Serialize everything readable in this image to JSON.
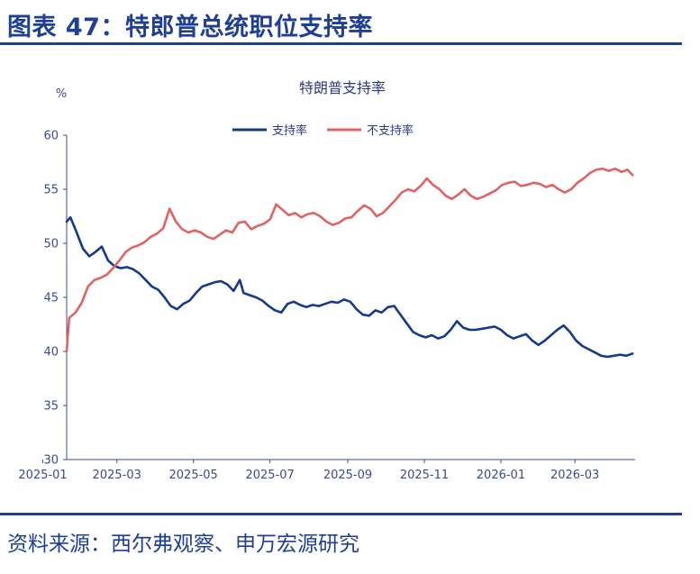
{
  "figure": {
    "title": "图表 47：特郎普总统职位支持率",
    "source": "资料来源：西尔弗观察、申万宏源研究",
    "accent_color": "#1f3f93"
  },
  "chart_data": {
    "type": "line",
    "title": "特朗普支持率",
    "ylabel": "%",
    "xlabel": "",
    "ylim": [
      30,
      60
    ],
    "yticks": [
      "30",
      "35",
      "40",
      "45",
      "50",
      "55",
      "60"
    ],
    "xlim": [
      "2025-01-20",
      "2026-04-18"
    ],
    "xticks": [
      "2025-01",
      "2025-03",
      "2025-05",
      "2025-07",
      "2025-09",
      "2025-11",
      "2026-01",
      "2026-03"
    ],
    "grid": false,
    "legend_position": "top",
    "series": [
      {
        "name": "支持率",
        "color": "#143a8c",
        "points": [
          [
            "2025-01-20",
            52.0
          ],
          [
            "2025-01-23",
            52.4
          ],
          [
            "2025-01-28",
            51.0
          ],
          [
            "2025-02-02",
            49.5
          ],
          [
            "2025-02-07",
            48.8
          ],
          [
            "2025-02-12",
            49.2
          ],
          [
            "2025-02-17",
            49.7
          ],
          [
            "2025-02-22",
            48.4
          ],
          [
            "2025-02-27",
            47.9
          ],
          [
            "2025-03-04",
            47.7
          ],
          [
            "2025-03-09",
            47.8
          ],
          [
            "2025-03-14",
            47.6
          ],
          [
            "2025-03-19",
            47.2
          ],
          [
            "2025-03-24",
            46.6
          ],
          [
            "2025-03-29",
            46.0
          ],
          [
            "2025-04-03",
            45.7
          ],
          [
            "2025-04-08",
            45.0
          ],
          [
            "2025-04-13",
            44.2
          ],
          [
            "2025-04-18",
            43.9
          ],
          [
            "2025-04-23",
            44.4
          ],
          [
            "2025-04-28",
            44.7
          ],
          [
            "2025-05-03",
            45.4
          ],
          [
            "2025-05-08",
            46.0
          ],
          [
            "2025-05-13",
            46.2
          ],
          [
            "2025-05-18",
            46.4
          ],
          [
            "2025-05-23",
            46.5
          ],
          [
            "2025-05-28",
            46.2
          ],
          [
            "2025-06-02",
            45.6
          ],
          [
            "2025-06-07",
            46.6
          ],
          [
            "2025-06-10",
            45.4
          ],
          [
            "2025-06-15",
            45.2
          ],
          [
            "2025-06-20",
            45.0
          ],
          [
            "2025-06-25",
            44.7
          ],
          [
            "2025-06-30",
            44.2
          ],
          [
            "2025-07-05",
            43.8
          ],
          [
            "2025-07-10",
            43.6
          ],
          [
            "2025-07-15",
            44.4
          ],
          [
            "2025-07-20",
            44.6
          ],
          [
            "2025-07-25",
            44.3
          ],
          [
            "2025-07-30",
            44.1
          ],
          [
            "2025-08-04",
            44.3
          ],
          [
            "2025-08-09",
            44.2
          ],
          [
            "2025-08-14",
            44.4
          ],
          [
            "2025-08-19",
            44.6
          ],
          [
            "2025-08-24",
            44.5
          ],
          [
            "2025-08-29",
            44.8
          ],
          [
            "2025-09-03",
            44.6
          ],
          [
            "2025-09-08",
            43.9
          ],
          [
            "2025-09-13",
            43.4
          ],
          [
            "2025-09-18",
            43.3
          ],
          [
            "2025-09-23",
            43.8
          ],
          [
            "2025-09-28",
            43.6
          ],
          [
            "2025-10-03",
            44.1
          ],
          [
            "2025-10-08",
            44.2
          ],
          [
            "2025-10-13",
            43.4
          ],
          [
            "2025-10-18",
            42.6
          ],
          [
            "2025-10-23",
            41.8
          ],
          [
            "2025-10-28",
            41.5
          ],
          [
            "2025-11-02",
            41.3
          ],
          [
            "2025-11-07",
            41.5
          ],
          [
            "2025-11-12",
            41.2
          ],
          [
            "2025-11-17",
            41.4
          ],
          [
            "2025-11-22",
            42.0
          ],
          [
            "2025-11-27",
            42.8
          ],
          [
            "2025-12-02",
            42.2
          ],
          [
            "2025-12-07",
            42.0
          ],
          [
            "2025-12-12",
            42.0
          ],
          [
            "2025-12-17",
            42.1
          ],
          [
            "2025-12-22",
            42.2
          ],
          [
            "2025-12-27",
            42.3
          ],
          [
            "2026-01-01",
            42.0
          ],
          [
            "2026-01-06",
            41.5
          ],
          [
            "2026-01-11",
            41.2
          ],
          [
            "2026-01-16",
            41.4
          ],
          [
            "2026-01-21",
            41.6
          ],
          [
            "2026-01-26",
            41.0
          ],
          [
            "2026-01-31",
            40.6
          ],
          [
            "2026-02-05",
            41.0
          ],
          [
            "2026-02-10",
            41.5
          ],
          [
            "2026-02-15",
            42.0
          ],
          [
            "2026-02-20",
            42.4
          ],
          [
            "2026-02-25",
            41.8
          ],
          [
            "2026-03-02",
            41.0
          ],
          [
            "2026-03-07",
            40.5
          ],
          [
            "2026-03-12",
            40.2
          ],
          [
            "2026-03-17",
            39.9
          ],
          [
            "2026-03-22",
            39.6
          ],
          [
            "2026-03-27",
            39.5
          ],
          [
            "2026-04-01",
            39.6
          ],
          [
            "2026-04-06",
            39.7
          ],
          [
            "2026-04-11",
            39.6
          ],
          [
            "2026-04-16",
            39.8
          ]
        ]
      },
      {
        "name": "不支持率",
        "color": "#de6464",
        "points": [
          [
            "2025-01-20",
            40.0
          ],
          [
            "2025-01-22",
            43.1
          ],
          [
            "2025-01-27",
            43.6
          ],
          [
            "2025-02-01",
            44.5
          ],
          [
            "2025-02-06",
            46.0
          ],
          [
            "2025-02-11",
            46.6
          ],
          [
            "2025-02-16",
            46.8
          ],
          [
            "2025-02-21",
            47.1
          ],
          [
            "2025-02-26",
            47.7
          ],
          [
            "2025-03-03",
            48.4
          ],
          [
            "2025-03-08",
            49.2
          ],
          [
            "2025-03-13",
            49.6
          ],
          [
            "2025-03-18",
            49.8
          ],
          [
            "2025-03-23",
            50.1
          ],
          [
            "2025-03-28",
            50.6
          ],
          [
            "2025-04-02",
            50.9
          ],
          [
            "2025-04-07",
            51.4
          ],
          [
            "2025-04-12",
            53.2
          ],
          [
            "2025-04-17",
            52.0
          ],
          [
            "2025-04-22",
            51.3
          ],
          [
            "2025-04-27",
            51.0
          ],
          [
            "2025-05-02",
            51.2
          ],
          [
            "2025-05-07",
            51.0
          ],
          [
            "2025-05-12",
            50.6
          ],
          [
            "2025-05-17",
            50.4
          ],
          [
            "2025-05-22",
            50.8
          ],
          [
            "2025-05-27",
            51.2
          ],
          [
            "2025-06-01",
            51.0
          ],
          [
            "2025-06-06",
            51.9
          ],
          [
            "2025-06-11",
            52.0
          ],
          [
            "2025-06-16",
            51.3
          ],
          [
            "2025-06-21",
            51.6
          ],
          [
            "2025-06-26",
            51.8
          ],
          [
            "2025-07-01",
            52.2
          ],
          [
            "2025-07-06",
            53.6
          ],
          [
            "2025-07-11",
            53.1
          ],
          [
            "2025-07-16",
            52.6
          ],
          [
            "2025-07-21",
            52.8
          ],
          [
            "2025-07-26",
            52.4
          ],
          [
            "2025-07-31",
            52.7
          ],
          [
            "2025-08-05",
            52.8
          ],
          [
            "2025-08-10",
            52.5
          ],
          [
            "2025-08-15",
            52.0
          ],
          [
            "2025-08-20",
            51.7
          ],
          [
            "2025-08-25",
            51.9
          ],
          [
            "2025-08-30",
            52.3
          ],
          [
            "2025-09-04",
            52.4
          ],
          [
            "2025-09-09",
            53.0
          ],
          [
            "2025-09-14",
            53.5
          ],
          [
            "2025-09-19",
            53.2
          ],
          [
            "2025-09-24",
            52.5
          ],
          [
            "2025-09-29",
            52.8
          ],
          [
            "2025-10-04",
            53.4
          ],
          [
            "2025-10-09",
            54.0
          ],
          [
            "2025-10-14",
            54.7
          ],
          [
            "2025-10-19",
            55.0
          ],
          [
            "2025-10-24",
            54.8
          ],
          [
            "2025-10-29",
            55.3
          ],
          [
            "2025-11-03",
            56.0
          ],
          [
            "2025-11-08",
            55.4
          ],
          [
            "2025-11-13",
            55.0
          ],
          [
            "2025-11-18",
            54.4
          ],
          [
            "2025-11-23",
            54.1
          ],
          [
            "2025-11-28",
            54.5
          ],
          [
            "2025-12-03",
            55.0
          ],
          [
            "2025-12-08",
            54.4
          ],
          [
            "2025-12-13",
            54.1
          ],
          [
            "2025-12-18",
            54.3
          ],
          [
            "2025-12-23",
            54.6
          ],
          [
            "2025-12-28",
            54.9
          ],
          [
            "2026-01-02",
            55.4
          ],
          [
            "2026-01-07",
            55.6
          ],
          [
            "2026-01-12",
            55.7
          ],
          [
            "2026-01-17",
            55.3
          ],
          [
            "2026-01-22",
            55.4
          ],
          [
            "2026-01-27",
            55.6
          ],
          [
            "2026-02-01",
            55.5
          ],
          [
            "2026-02-06",
            55.2
          ],
          [
            "2026-02-11",
            55.4
          ],
          [
            "2026-02-16",
            55.0
          ],
          [
            "2026-02-21",
            54.7
          ],
          [
            "2026-02-26",
            55.0
          ],
          [
            "2026-03-03",
            55.6
          ],
          [
            "2026-03-08",
            56.0
          ],
          [
            "2026-03-13",
            56.5
          ],
          [
            "2026-03-18",
            56.8
          ],
          [
            "2026-03-23",
            56.9
          ],
          [
            "2026-03-28",
            56.7
          ],
          [
            "2026-04-02",
            56.9
          ],
          [
            "2026-04-07",
            56.6
          ],
          [
            "2026-04-12",
            56.8
          ],
          [
            "2026-04-16",
            56.3
          ]
        ]
      }
    ]
  }
}
